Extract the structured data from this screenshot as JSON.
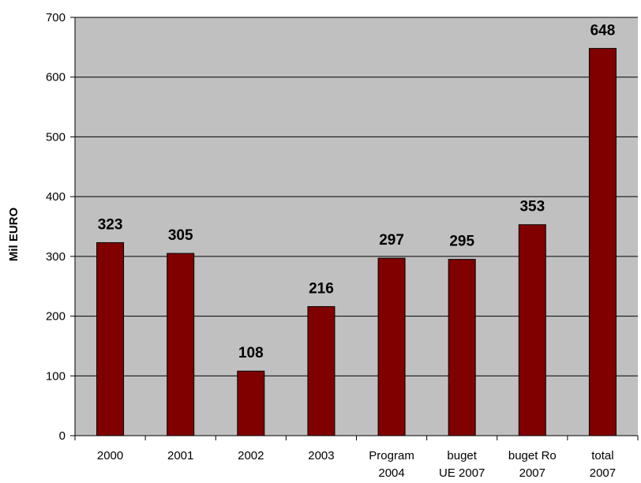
{
  "chart_data": {
    "type": "bar",
    "categories": [
      [
        "2000"
      ],
      [
        "2001"
      ],
      [
        "2002"
      ],
      [
        "2003"
      ],
      [
        "Program",
        "2004"
      ],
      [
        "buget",
        "UE 2007"
      ],
      [
        "buget Ro",
        "2007"
      ],
      [
        "total",
        "2007"
      ]
    ],
    "values": [
      323,
      305,
      108,
      216,
      297,
      295,
      353,
      648
    ],
    "ylabel": "Mil EURO",
    "xlabel": "",
    "title": "",
    "ylim": [
      0,
      700
    ],
    "yticks": [
      0,
      100,
      200,
      300,
      400,
      500,
      600,
      700
    ],
    "grid": true,
    "colors": {
      "plot_background": "#c0c0c0",
      "bar_fill": "#800000",
      "gridline": "#000000"
    }
  }
}
